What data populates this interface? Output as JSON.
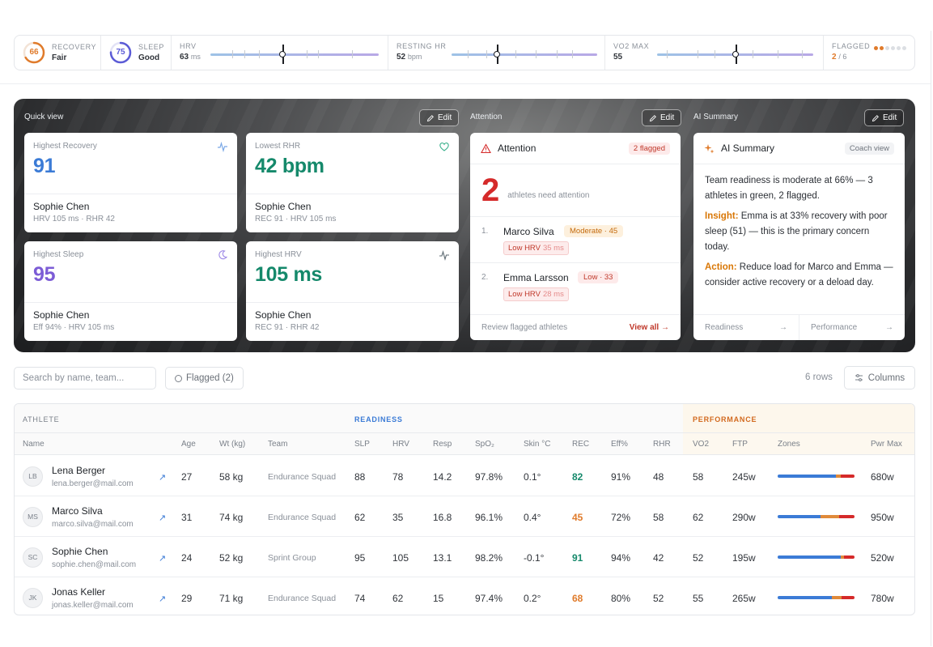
{
  "metrics": {
    "recovery": {
      "label": "RECOVERY",
      "value": "66",
      "status": "Fair",
      "percent": 66,
      "color": "#e07b2b"
    },
    "sleep": {
      "label": "SLEEP",
      "value": "75",
      "status": "Good",
      "percent": 75,
      "color": "#5b5bd6"
    },
    "hrv": {
      "label": "HRV",
      "value": "63",
      "unit": "ms",
      "position": 0.43
    },
    "resting_hr": {
      "label": "RESTING HR",
      "value": "52",
      "unit": "bpm",
      "position": 0.31
    },
    "vo2": {
      "label": "VO2 MAX",
      "value": "55",
      "position": 0.5
    },
    "flagged": {
      "label": "FLAGGED",
      "value": "2",
      "total": "/ 6",
      "flagged_count": 2,
      "total_count": 6
    }
  },
  "quick_view": {
    "label": "Quick view",
    "edit": "Edit",
    "cards": [
      {
        "label": "Highest Recovery",
        "value": "91",
        "color": "#3b7bd6",
        "icon": "activity-icon",
        "name": "Sophie Chen",
        "sub": "HRV 105 ms · RHR 42"
      },
      {
        "label": "Lowest RHR",
        "value": "42 bpm",
        "color": "#15896b",
        "icon": "heart-icon",
        "name": "Sophie Chen",
        "sub": "REC 91 · HRV 105 ms"
      },
      {
        "label": "Highest Sleep",
        "value": "95",
        "color": "#7c5cd6",
        "icon": "moon-icon",
        "name": "Sophie Chen",
        "sub": "Eff 94% · HRV 105 ms"
      },
      {
        "label": "Highest HRV",
        "value": "105 ms",
        "color": "#15896b",
        "icon": "pulse-icon",
        "name": "Sophie Chen",
        "sub": "REC 91 · RHR 42"
      }
    ]
  },
  "attention": {
    "section_label": "Attention",
    "edit": "Edit",
    "title": "Attention",
    "badge": "2 flagged",
    "count": "2",
    "count_text": "athletes need attention",
    "items": [
      {
        "index": "1.",
        "name": "Marco Silva",
        "level": "Moderate · 45",
        "flag": "Low HRV",
        "flag_value": "35 ms"
      },
      {
        "index": "2.",
        "name": "Emma Larsson",
        "level": "Low · 33",
        "flag": "Low HRV",
        "flag_value": "28 ms"
      }
    ],
    "footer_left": "Review flagged athletes",
    "footer_right": "View all →"
  },
  "ai_summary": {
    "section_label": "AI Summary",
    "edit": "Edit",
    "title": "AI Summary",
    "badge": "Coach view",
    "para1": "Team readiness is moderate at 66% — 3 athletes in green, 2 flagged.",
    "insight_label": "Insight:",
    "insight_text": " Emma is at 33% recovery with poor sleep (51) — this is the primary concern today.",
    "action_label": "Action:",
    "action_text": " Reduce load for Marco and Emma — consider active recovery or a deload day.",
    "link1": "Readiness",
    "link2": "Performance"
  },
  "toolbar": {
    "search_placeholder": "Search by name, team...",
    "flagged_filter": "Flagged (2)",
    "rows": "6 rows",
    "columns": "Columns"
  },
  "table": {
    "groups": {
      "athlete": "ATHLETE",
      "readiness": "READINESS",
      "performance": "PERFORMANCE"
    },
    "columns": [
      "Name",
      "Age",
      "Wt (kg)",
      "Team",
      "SLP",
      "HRV",
      "Resp",
      "SpO₂",
      "Skin °C",
      "REC",
      "Eff%",
      "RHR",
      "VO2",
      "FTP",
      "Zones",
      "Pwr Max"
    ],
    "rows": [
      {
        "initials": "LB",
        "name": "Lena Berger",
        "email": "lena.berger@mail.com",
        "age": "27",
        "wt": "58 kg",
        "team": "Endurance Squad",
        "slp": "88",
        "hrv": "78",
        "resp": "14.2",
        "spo2": "97.8%",
        "skin": "0.1°",
        "rec": "82",
        "rec_color": "#15896b",
        "eff": "91%",
        "rhr": "48",
        "vo2": "58",
        "ftp": "245w",
        "zones": [
          0.76,
          0.06,
          0.18
        ],
        "pwr": "680w"
      },
      {
        "initials": "MS",
        "name": "Marco Silva",
        "email": "marco.silva@mail.com",
        "age": "31",
        "wt": "74 kg",
        "team": "Endurance Squad",
        "slp": "62",
        "hrv": "35",
        "resp": "16.8",
        "spo2": "96.1%",
        "skin": "0.4°",
        "rec": "45",
        "rec_color": "#e07b2b",
        "eff": "72%",
        "rhr": "58",
        "vo2": "62",
        "ftp": "290w",
        "zones": [
          0.56,
          0.24,
          0.2
        ],
        "pwr": "950w"
      },
      {
        "initials": "SC",
        "name": "Sophie Chen",
        "email": "sophie.chen@mail.com",
        "age": "24",
        "wt": "52 kg",
        "team": "Sprint Group",
        "slp": "95",
        "hrv": "105",
        "resp": "13.1",
        "spo2": "98.2%",
        "skin": "-0.1°",
        "rec": "91",
        "rec_color": "#15896b",
        "eff": "94%",
        "rhr": "42",
        "vo2": "52",
        "ftp": "195w",
        "zones": [
          0.82,
          0.04,
          0.14
        ],
        "pwr": "520w"
      },
      {
        "initials": "JK",
        "name": "Jonas Keller",
        "email": "jonas.keller@mail.com",
        "age": "29",
        "wt": "71 kg",
        "team": "Endurance Squad",
        "slp": "74",
        "hrv": "62",
        "resp": "15",
        "spo2": "97.4%",
        "skin": "0.2°",
        "rec": "68",
        "rec_color": "#e07b2b",
        "eff": "80%",
        "rhr": "52",
        "vo2": "55",
        "ftp": "265w",
        "zones": [
          0.7,
          0.13,
          0.17
        ],
        "pwr": "780w"
      }
    ]
  }
}
